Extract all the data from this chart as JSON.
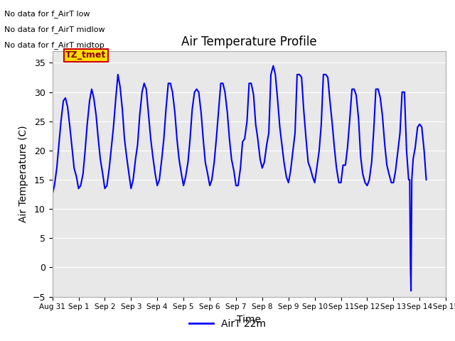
{
  "title": "Air Temperature Profile",
  "xlabel": "Time",
  "ylabel": "Air Temperature (C)",
  "ylim": [
    -5,
    37
  ],
  "background_color": "#e8e8e8",
  "line_color": "#0000ff",
  "line_width": 1.5,
  "legend_label": "AirT 22m",
  "annotation_texts": [
    "No data for f_AirT low",
    "No data for f_AirT midlow",
    "No data for f_AirT midtop"
  ],
  "tz_tmet_label": "TZ_tmet",
  "yticks": [
    -5,
    0,
    5,
    10,
    15,
    20,
    25,
    30,
    35
  ],
  "xtick_labels": [
    "Aug 31",
    "Sep 1",
    "Sep 2",
    "Sep 3",
    "Sep 4",
    "Sep 5",
    "Sep 6",
    "Sep 7",
    "Sep 8",
    "Sep 9",
    "Sep 10",
    "Sep 11",
    "Sep 12",
    "Sep 13",
    "Sep 14",
    "Sep 15"
  ],
  "data_x": [
    0.0,
    0.08,
    0.17,
    0.25,
    0.33,
    0.42,
    0.5,
    0.58,
    0.67,
    0.75,
    0.83,
    0.92,
    1.0,
    1.08,
    1.17,
    1.25,
    1.33,
    1.42,
    1.5,
    1.58,
    1.67,
    1.75,
    1.83,
    1.92,
    2.0,
    2.08,
    2.17,
    2.25,
    2.33,
    2.42,
    2.5,
    2.58,
    2.67,
    2.75,
    2.83,
    2.92,
    3.0,
    3.08,
    3.17,
    3.25,
    3.33,
    3.42,
    3.5,
    3.58,
    3.67,
    3.75,
    3.83,
    3.92,
    4.0,
    4.08,
    4.17,
    4.25,
    4.33,
    4.42,
    4.5,
    4.58,
    4.67,
    4.75,
    4.83,
    4.92,
    5.0,
    5.08,
    5.17,
    5.25,
    5.33,
    5.42,
    5.5,
    5.58,
    5.67,
    5.75,
    5.83,
    5.92,
    6.0,
    6.08,
    6.17,
    6.25,
    6.33,
    6.42,
    6.5,
    6.58,
    6.67,
    6.75,
    6.83,
    6.92,
    7.0,
    7.08,
    7.17,
    7.25,
    7.33,
    7.42,
    7.5,
    7.58,
    7.67,
    7.75,
    7.83,
    7.92,
    8.0,
    8.08,
    8.17,
    8.25,
    8.33,
    8.42,
    8.5,
    8.58,
    8.67,
    8.75,
    8.83,
    8.92,
    9.0,
    9.08,
    9.17,
    9.25,
    9.33,
    9.42,
    9.5,
    9.58,
    9.67,
    9.75,
    9.83,
    9.92,
    10.0,
    10.08,
    10.17,
    10.25,
    10.33,
    10.42,
    10.5,
    10.58,
    10.67,
    10.75,
    10.83,
    10.92,
    11.0,
    11.08,
    11.17,
    11.25,
    11.33,
    11.42,
    11.5,
    11.58,
    11.67,
    11.75,
    11.83,
    11.92,
    12.0,
    12.08,
    12.17,
    12.25,
    12.33,
    12.42,
    12.5,
    12.58,
    12.67,
    12.75,
    12.83,
    12.92,
    13.0,
    13.08,
    13.17,
    13.25,
    13.33,
    13.42,
    13.5,
    13.58,
    13.62,
    13.65,
    13.67,
    13.7,
    13.75,
    13.83,
    13.92,
    14.0,
    14.08,
    14.17,
    14.25
  ],
  "data_y": [
    12.5,
    14.0,
    17.0,
    21.0,
    25.0,
    28.5,
    29.0,
    27.5,
    24.0,
    20.5,
    17.0,
    15.5,
    13.5,
    14.0,
    16.0,
    20.0,
    24.5,
    28.5,
    30.5,
    29.0,
    26.0,
    22.0,
    18.5,
    16.0,
    13.5,
    14.0,
    17.0,
    20.5,
    24.0,
    29.0,
    33.0,
    31.0,
    27.0,
    22.0,
    19.0,
    16.0,
    13.5,
    15.0,
    18.5,
    21.0,
    26.0,
    30.0,
    31.5,
    30.5,
    26.0,
    22.0,
    19.0,
    16.0,
    14.0,
    15.0,
    18.5,
    22.0,
    27.0,
    31.5,
    31.5,
    30.0,
    26.5,
    22.0,
    18.5,
    16.0,
    14.0,
    15.5,
    18.0,
    22.0,
    27.0,
    30.0,
    30.5,
    30.0,
    26.5,
    22.0,
    18.0,
    16.0,
    14.0,
    15.0,
    18.0,
    22.0,
    26.5,
    31.5,
    31.5,
    30.0,
    26.5,
    22.0,
    18.5,
    16.5,
    14.0,
    14.0,
    17.0,
    21.5,
    22.0,
    25.0,
    31.5,
    31.5,
    29.5,
    24.5,
    22.0,
    18.5,
    17.0,
    18.0,
    21.0,
    23.0,
    33.0,
    34.5,
    33.0,
    29.0,
    24.0,
    21.0,
    18.0,
    15.5,
    14.5,
    16.5,
    20.0,
    23.0,
    33.0,
    33.0,
    32.5,
    27.0,
    22.0,
    18.0,
    17.0,
    15.5,
    14.5,
    17.0,
    20.0,
    24.5,
    33.0,
    33.0,
    32.5,
    28.5,
    24.5,
    20.5,
    17.0,
    14.5,
    14.5,
    17.5,
    17.5,
    20.5,
    25.0,
    30.5,
    30.5,
    29.5,
    25.5,
    19.0,
    16.0,
    14.5,
    14.0,
    15.0,
    18.0,
    23.5,
    30.5,
    30.5,
    29.0,
    26.0,
    21.0,
    17.5,
    16.0,
    14.5,
    14.5,
    16.5,
    20.0,
    23.0,
    30.0,
    30.0,
    20.0,
    15.0,
    15.0,
    0.0,
    -4.0,
    15.0,
    18.5,
    20.5,
    24.0,
    24.5,
    24.0,
    20.0,
    15.0
  ]
}
